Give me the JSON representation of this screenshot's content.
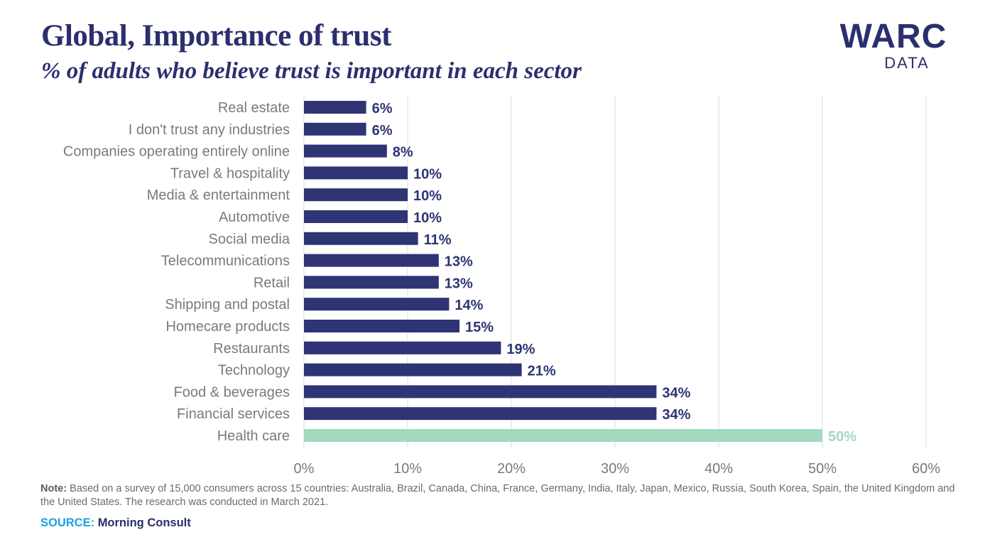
{
  "header": {
    "title": "Global, Importance of trust",
    "subtitle": "% of adults who believe trust is important in each sector"
  },
  "logo": {
    "main": "WARC",
    "sub": "DATA"
  },
  "colors": {
    "bar": "#2e3474",
    "highlight": "#a2d9c0",
    "label": "#7a7a7a",
    "grid": "#dedede",
    "title": "#2b2f6e",
    "source_label": "#19a3e0"
  },
  "chart_data": {
    "type": "bar",
    "orientation": "horizontal",
    "title": "Global, Importance of trust",
    "subtitle": "% of adults who believe trust is important in each sector",
    "categories": [
      "Real estate",
      "I don't trust any industries",
      "Companies operating entirely online",
      "Travel & hospitality",
      "Media & entertainment",
      "Automotive",
      "Social media",
      "Telecommunications",
      "Retail",
      "Shipping and postal",
      "Homecare products",
      "Restaurants",
      "Technology",
      "Food & beverages",
      "Financial services",
      "Health care"
    ],
    "values": [
      6,
      6,
      8,
      10,
      10,
      10,
      11,
      13,
      13,
      14,
      15,
      19,
      21,
      34,
      34,
      50
    ],
    "value_labels": [
      "6%",
      "6%",
      "8%",
      "10%",
      "10%",
      "10%",
      "11%",
      "13%",
      "13%",
      "14%",
      "15%",
      "19%",
      "21%",
      "34%",
      "34%",
      "50%"
    ],
    "highlight_index": 15,
    "xlim": [
      0,
      60
    ],
    "xticks": [
      0,
      10,
      20,
      30,
      40,
      50,
      60
    ],
    "xtick_labels": [
      "0%",
      "10%",
      "20%",
      "30%",
      "40%",
      "50%",
      "60%"
    ],
    "grid": true,
    "xlabel": "",
    "ylabel": ""
  },
  "note": {
    "label": "Note:",
    "text": " Based on a survey of 15,000 consumers across 15 countries: Australia, Brazil, Canada, China, France, Germany, India, Italy, Japan, Mexico, Russia, South Korea, Spain, the United Kingdom and the United States. The research was conducted in March 2021."
  },
  "source": {
    "label": "SOURCE:",
    "value": "Morning Consult"
  }
}
